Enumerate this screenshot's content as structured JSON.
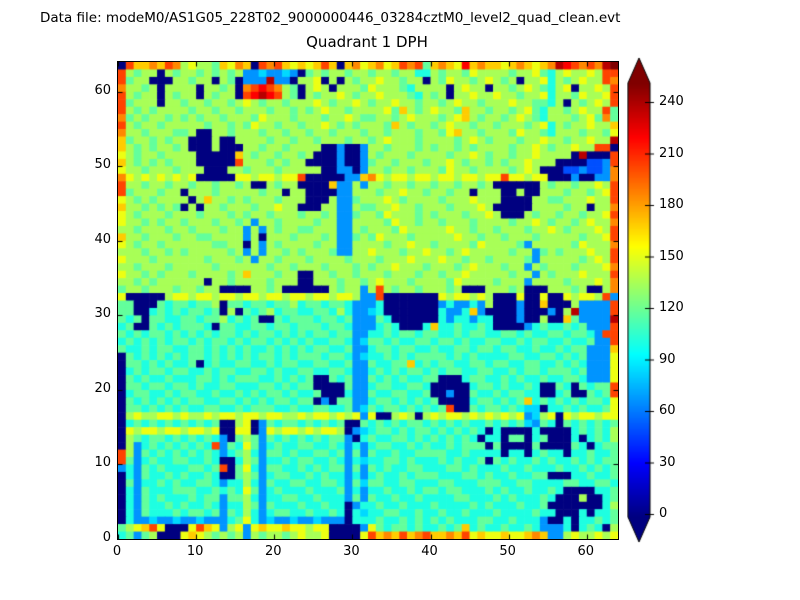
{
  "header": {
    "data_file_label": "Data file: modeM0/AS1G05_228T02_9000000446_03284cztM0_level2_quad_clean.evt"
  },
  "chart_data": {
    "type": "heatmap",
    "title": "Quadrant 1 DPH",
    "xlabel": "",
    "ylabel": "",
    "xlim": [
      0,
      64
    ],
    "ylim": [
      0,
      64
    ],
    "x_ticks": [
      0,
      10,
      20,
      30,
      40,
      50,
      60
    ],
    "y_ticks": [
      0,
      10,
      20,
      30,
      40,
      50,
      60
    ],
    "grid_size": 64,
    "colormap": "jet",
    "vmin": 0,
    "vmax": 252,
    "colorbar": {
      "ticks": [
        0,
        30,
        60,
        90,
        120,
        150,
        180,
        210,
        240
      ],
      "extend": "both"
    },
    "cell_encoding": "64 row strings, top row first (y=63 down to y=0); each char is a hex digit 0-f; cell value in counts = digit * 17",
    "rows": [
      "0caabacb89887a9ba0cbca9a9aca0ab9ab9acbc7aba9dabaa9aba9abedcbcbef",
      "c878808788787878445445407878878878878866878879888878897689889 8cc",
      "c788000887880870444e44088908087889887880879887898780889687 8988cb",
      "b887808888088780bcdcb8708980888798887688880898808878987689 08898c",
      "c878808788087880cdedc870878898788988876878088988988788968879889c",
      "c788808878878878987887888987889878898878878988788898877680 87898c",
      "c878788887887887888788787898878888 97a8789887a88788789768878988c",
      "b787887878788788879888788878898778878988878 9a87887898768887897b",
      "c878878888878878798878878898787888 7a878878988788788878968788988a",
      "b887888778008878887887887887888788788878879a88788879887688878879",
      "a788787880008008888788788788878878988878888789878887889887 88988e",
      "a878788780008000887887888800400488788878788787888878898788988cc0",
      "987887888800000a878878878000400487888788887889878878898888 0e000c",
      "a87878788800000c8887878800004004788788878898788787889888000 0334c",
      "98878887888000887888788888004404887887888798878888789800033 4334b",
      "b989898989000009989989 9c0000044ab98998998998998 99c9989900040 044b",
      "c887887887887887800878 80000a44848878878878878878000000878878 898c",
      "c788878808887888887880 8800004488878898878878808880080 0888788789c",
      "98787888808a887878887888000844788898788887888988800008877888 988c",
      "a887878708088788878898800088448778898878887888980000088887 88088b",
      "98788878887888787887888788784478879888787888788980008788788 7889c",
      "98878788788878878488788887884488887988788788878888788987887 8988b",
      "8878887887888788484878877888448788879888889887887888788987 88898c",
      "a8878887887788884808887888784478798887888889887887888788888 7889c",
      "98788788888877880848788887884488887889887888879888874888887 9888b",
      "88878878788888784848878788874488988878898878988888788478788 8988c",
      "98887888888788878488788878888788878889888988788788887488888 7898c",
      "88788878888878888887887888788878788988878887898887884878887 8889b",
      "9887878887888878a888788008878878887888788788988888788487888 9888c",
      "887878888880887888878880088878878988878888798888788848888788 898b",
      "788788878878800008878000000878848c87887888780008887800088878 008b",
      "9000008998998998998998 99899899844c00000009899898000900900989 98c4",
      "770007677677807767767786776776444600000004644648000400a000844 44c",
      "77006767677670807678677667768644560000000644 6a400004000408e4444c",
      "7670776677677867670076777677674447600000064664660004008 00a74444ec",
      "670076767776077667767767776776444676000 6a667667600004 6766767444c",
      "767677676767677676776767677677446676776776676776677676677677 64cc",
      "6767676776767767677676767667764577676677677676677667677667 66744c",
      "766767766776767676676767677667446776776676677677677667667677 444a",
      "0767676767767676767767677767764566767677776767666677667767 674449",
      "07767676670676677667677667766744766 77a67677667767766776676 764449",
      "0676776776676776677676677667764467676776767766776676776777 674449",
      "0767667666776767776676767007674476767667700067766767667667 764449",
      "077677677676677666776767700007446776677600000677676676007607 677c",
      "067766767766766767677676670006447667766700400766767766006700 767c",
      "076767676776677676767767704077446776767670000677 6767a67676 767769",
      "077676767667766767776676677667457677676767c00767767655066767 6679",
      "089889989889899899899889899898949008980898998989898945890989 9899",
      "067676767676700890476776767670076767677676767667676754760767 6767",
      "098998 998998900990498998989980456776767767676760600006000067 6768",
      "087677676767640787476767676774067667767676767606607706700060 6768",
      "084676767676c47697467667766764646776676766767770700007000076 0677",
      "c847676767676467864776766776747476676677776676666066067660 667667",
      "c746766776676006874667677667646566776766676766707676676766 767677",
      "4647676667767c0796477667676774747676677666776766676676667667 6767",
      "064766767667600787467766767664646766767776667767667667700066 7667",
      "074667676677646686476677667764757766776667766677766776666776 6776",
      "064766677766767697467666766674646676676776776667676676676000 0667",
      "0647676667677477864667766766647476676676666776667676667600 080067",
      "064766767667646687476667667660466766766676666767666766700000 0068",
      "064766676776747686467766766760656677667667667666766667660006 0667",
      "0644544544544467964544544544406667667676767666776676664006 066767",
      "789ac90009ca948949a99a998990000497677676676 7a67667667644460 67608",
      "674780009a98787848788789889000 09cabacabcaabac9a99a99aba4489 88989"
    ]
  }
}
